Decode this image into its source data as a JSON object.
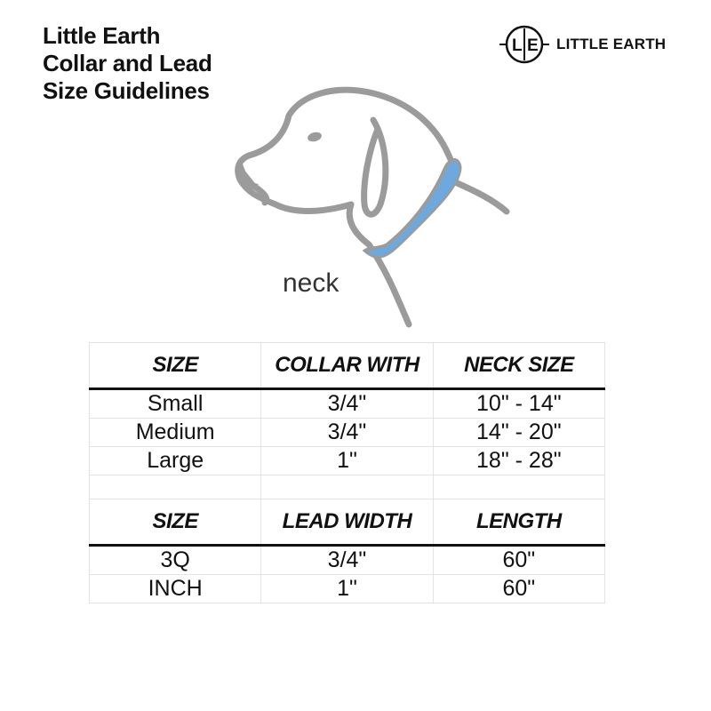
{
  "title": [
    "Little Earth",
    "Collar and Lead",
    "Size Guidelines"
  ],
  "logo": {
    "monogram": "L|E",
    "text": "LITTLE EARTH"
  },
  "illustration": {
    "label": "neck",
    "collar_color": "#6fa8dc",
    "outline_color": "#9b9b9b"
  },
  "collar_table": {
    "headers": [
      "SIZE",
      "COLLAR WITH",
      "NECK SIZE"
    ],
    "rows": [
      [
        "Small",
        "3/4\"",
        "10\" - 14\""
      ],
      [
        "Medium",
        "3/4\"",
        "14\" - 20\""
      ],
      [
        "Large",
        "1\"",
        "18\" - 28\""
      ]
    ]
  },
  "lead_table": {
    "headers": [
      "SIZE",
      "LEAD WIDTH",
      "LENGTH"
    ],
    "rows": [
      [
        "3Q",
        "3/4\"",
        "60\""
      ],
      [
        "INCH",
        "1\"",
        "60\""
      ]
    ]
  }
}
